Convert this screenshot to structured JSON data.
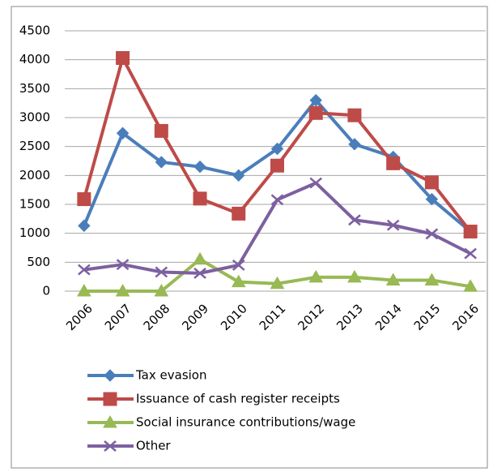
{
  "chart_data": {
    "type": "line",
    "categories": [
      "2006",
      "2007",
      "2008",
      "2009",
      "2010",
      "2011",
      "2012",
      "2013",
      "2014",
      "2015",
      "2016"
    ],
    "series": [
      {
        "name": "Tax evasion",
        "color": "#4a7ebb",
        "marker": "diamond",
        "values": [
          1130,
          2730,
          2230,
          2150,
          2000,
          2460,
          3300,
          2540,
          2320,
          1590,
          1030
        ]
      },
      {
        "name": "Issuance of cash register receipts",
        "color": "#be4b48",
        "marker": "square",
        "values": [
          1590,
          4030,
          2770,
          1600,
          1340,
          2170,
          3080,
          3040,
          2210,
          1880,
          1030
        ]
      },
      {
        "name": "Social insurance contributions/wage",
        "color": "#98b954",
        "marker": "triangle",
        "values": [
          0,
          0,
          0,
          550,
          160,
          130,
          240,
          240,
          190,
          190,
          80
        ]
      },
      {
        "name": "Other",
        "color": "#7d60a0",
        "marker": "x",
        "values": [
          370,
          460,
          330,
          310,
          450,
          1580,
          1870,
          1230,
          1140,
          990,
          650
        ]
      }
    ],
    "ylim": [
      0,
      4500
    ],
    "yticks": [
      0,
      500,
      1000,
      1500,
      2000,
      2500,
      3000,
      3500,
      4000,
      4500
    ],
    "grid": true,
    "legend": "bottom"
  }
}
